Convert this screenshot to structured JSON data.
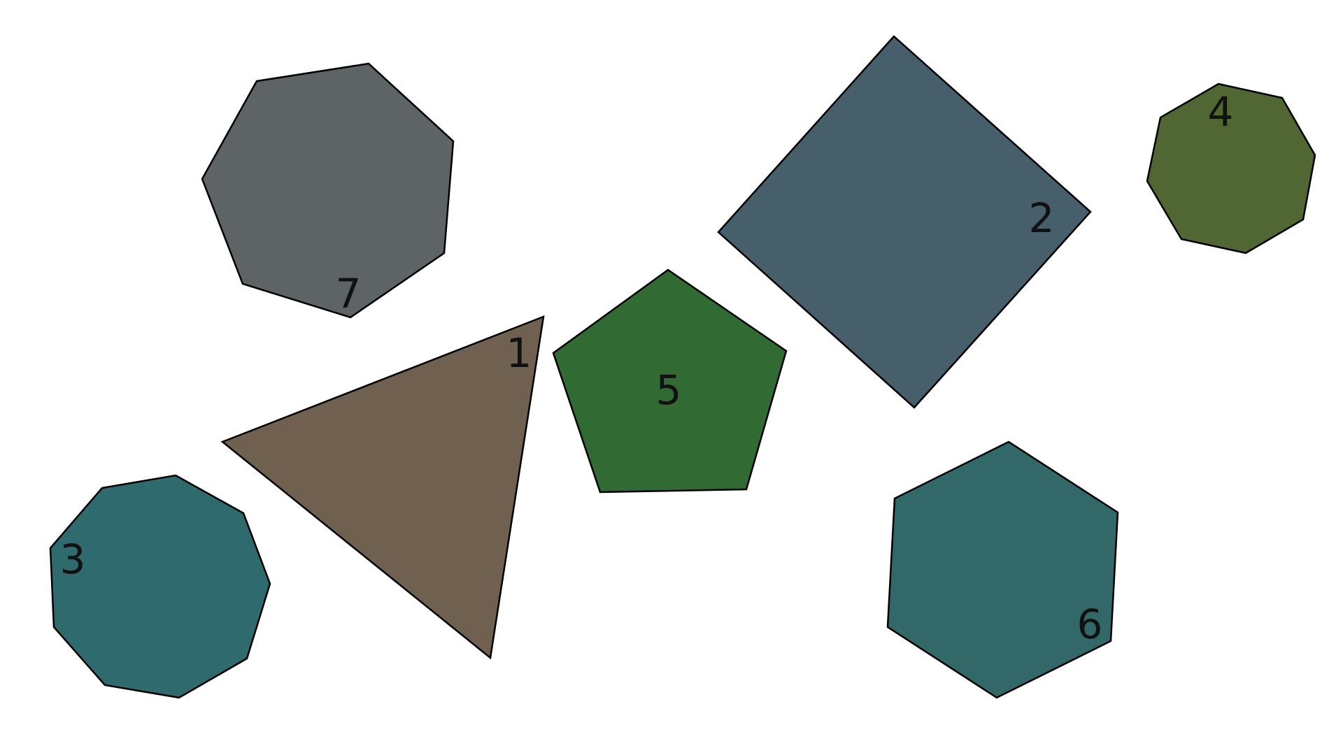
{
  "shapes": [
    {
      "id": "triangle",
      "label": "1",
      "color": "#6f6050"
    },
    {
      "id": "square",
      "label": "2",
      "color": "#475e6b"
    },
    {
      "id": "octagon-left",
      "label": "3",
      "color": "#2f6a6f"
    },
    {
      "id": "octagon-right",
      "label": "4",
      "color": "#516733"
    },
    {
      "id": "pentagon",
      "label": "5",
      "color": "#316a32"
    },
    {
      "id": "hexagon",
      "label": "6",
      "color": "#336869"
    },
    {
      "id": "heptagon",
      "label": "7",
      "color": "#5e6366"
    }
  ]
}
